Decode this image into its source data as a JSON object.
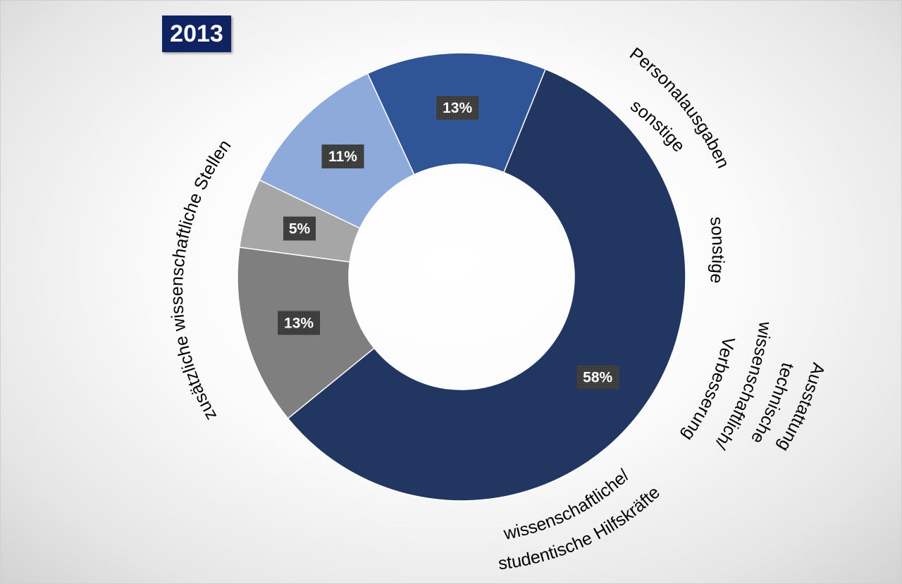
{
  "badge": {
    "year": "2013"
  },
  "chart_data": {
    "type": "pie",
    "variant": "donut",
    "slices": [
      {
        "label": "zusätzliche wissenschaftliche Stellen",
        "value": 58,
        "display": "58%",
        "color": "#213762"
      },
      {
        "label": "sonstige Personalausgaben",
        "value": 13,
        "display": "13%",
        "color": "#7f7f7f"
      },
      {
        "label": "sonstige",
        "value": 5,
        "display": "5%",
        "color": "#a6a6a6"
      },
      {
        "label": "Verbesserung wissenschaftlich/ technische Ausstattung",
        "value": 11,
        "display": "11%",
        "color": "#8eaadb"
      },
      {
        "label": "wissenschaftliche/ studentische Hilfskräfte",
        "value": 13,
        "display": "13%",
        "color": "#2f5597"
      }
    ]
  }
}
